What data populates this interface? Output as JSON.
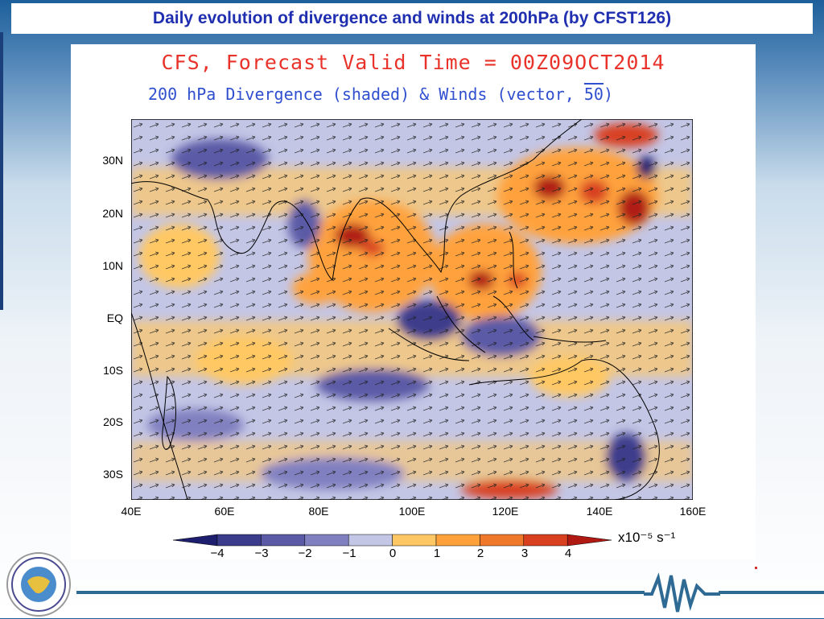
{
  "slide": {
    "title": "Daily evolution of divergence and winds at 200hPa (by CFST126)"
  },
  "figure": {
    "header_line1": "CFS, Forecast Valid Time = 00Z09OCT2014",
    "header_line2_prefix": "200 hPa Divergence (shaded) & Winds (vector,",
    "header_ref_vector": "50",
    "header_line2_suffix": ")",
    "lat_labels": [
      "30N",
      "20N",
      "10N",
      "EQ",
      "10S",
      "20S",
      "30S"
    ],
    "lon_labels": [
      "40E",
      "60E",
      "80E",
      "100E",
      "120E",
      "140E",
      "160E"
    ],
    "colorbar": {
      "ticks": [
        "−4",
        "−3",
        "−2",
        "−1",
        "0",
        "1",
        "2",
        "3",
        "4"
      ],
      "unit": "x10⁻⁵ s⁻¹",
      "colors": [
        "#1e1e6e",
        "#3c3c8c",
        "#5a5aa6",
        "#8080c0",
        "#c4c6e6",
        "#ffc864",
        "#ffa23c",
        "#f0782a",
        "#d84020",
        "#b01a12"
      ]
    }
  }
}
